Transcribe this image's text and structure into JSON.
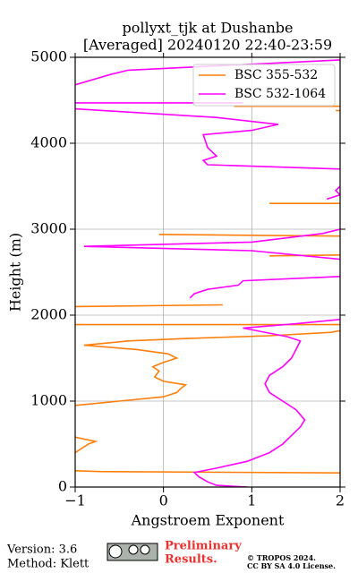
{
  "chart_data": {
    "type": "profile",
    "title": "pollyxt_tjk at Dushanbe",
    "subtitle": "[Averaged] 20240120 22:40-23:59",
    "xlabel": "Angstroem Exponent",
    "ylabel": "Height (m)",
    "xlim": [
      -1,
      2
    ],
    "xticks": [
      {
        "value": -1,
        "label": "−1"
      },
      0,
      1,
      2
    ],
    "ylim": [
      0,
      5000
    ],
    "yticks": [
      0,
      1000,
      2000,
      3000,
      4000,
      5000
    ],
    "grid": true,
    "legend": "upper right",
    "series": [
      {
        "name": "BSC 355-532",
        "color": "#ff7f0e",
        "y": [
          190,
          180,
          165,
          null,
          400,
          500,
          530,
          580,
          null,
          950,
          1000,
          1050,
          1100,
          1150,
          1190,
          1230,
          1280,
          1350,
          1400,
          1450,
          1500,
          1550,
          1600,
          1650,
          1670,
          1700,
          1730,
          1760,
          1800,
          1820,
          null,
          1890,
          1890,
          null,
          2100,
          2120,
          null,
          2690,
          2700,
          null,
          2940,
          2920,
          null,
          3300,
          3300,
          null,
          4380,
          4380,
          null,
          4430,
          4430
        ],
        "values": [
          -1,
          -0.72,
          2.0,
          null,
          -1,
          -0.85,
          -0.77,
          -1,
          null,
          -1,
          -0.5,
          0,
          0.15,
          0.2,
          0.25,
          0,
          -0.1,
          -0.05,
          -0.12,
          0,
          0.15,
          0.05,
          -0.3,
          -0.9,
          -0.7,
          -0.4,
          0.3,
          1.2,
          1.9,
          2.0,
          null,
          -1,
          2.0,
          null,
          -1,
          0.67,
          null,
          1.2,
          2.0,
          null,
          -0.05,
          2.0,
          null,
          1.2,
          2.0,
          null,
          1.95,
          2.0,
          null,
          0.8,
          2.0
        ]
      },
      {
        "name": "BSC 532-1064",
        "color": "#ff00ff",
        "y": [
          0,
          20,
          60,
          120,
          170,
          220,
          300,
          400,
          500,
          600,
          700,
          780,
          900,
          1000,
          1100,
          1200,
          1300,
          1400,
          1500,
          1600,
          1700,
          1750,
          1850,
          1900,
          1950,
          null,
          2200,
          2250,
          2300,
          2350,
          2400,
          2450,
          null,
          2650,
          2750,
          2800,
          2850,
          2950,
          3000,
          null,
          3350,
          3400,
          3450,
          3500,
          null,
          3700,
          3750,
          3800,
          3850,
          3950,
          4100,
          4150,
          4220,
          4300,
          4400,
          null,
          4470,
          4470,
          null,
          4680,
          4800,
          4850,
          4970
        ],
        "values": [
          0.95,
          0.6,
          0.5,
          0.4,
          0.35,
          0.6,
          0.95,
          1.2,
          1.35,
          1.45,
          1.55,
          1.6,
          1.5,
          1.35,
          1.2,
          1.15,
          1.2,
          1.35,
          1.45,
          1.5,
          1.55,
          1.4,
          0.9,
          1.5,
          2.0,
          null,
          0.3,
          0.35,
          0.5,
          0.85,
          0.9,
          2.0,
          null,
          2.0,
          1.0,
          -0.9,
          1.0,
          1.8,
          2.0,
          null,
          1.85,
          2.0,
          1.95,
          2.0,
          null,
          2.0,
          0.5,
          0.45,
          0.6,
          0.5,
          0.45,
          1.0,
          1.3,
          0.6,
          -1,
          null,
          -1,
          0.9,
          null,
          -1,
          -0.6,
          -0.4,
          2.0
        ]
      }
    ]
  },
  "footer": {
    "version": "Version: 3.6",
    "method": "Method: Klett",
    "notice": [
      "Preliminary",
      "Results."
    ],
    "copyright": "© TROPOS 2024.",
    "license": "CC BY SA 4.0 License."
  }
}
